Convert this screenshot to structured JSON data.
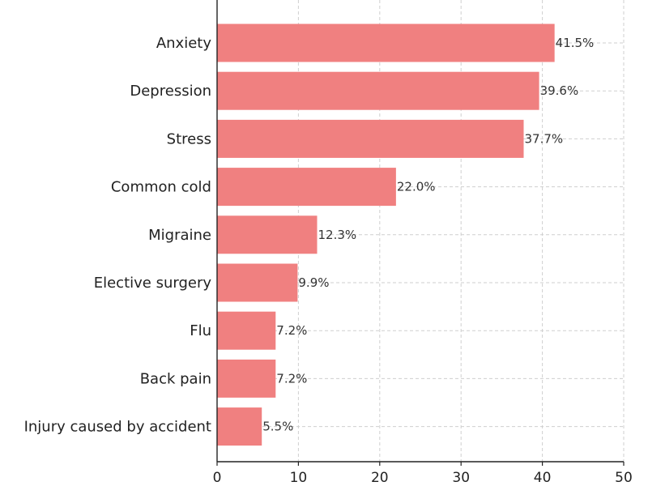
{
  "chart_data": {
    "type": "bar",
    "orientation": "horizontal",
    "title": "",
    "xlabel": "",
    "ylabel": "",
    "categories": [
      "Anxiety",
      "Depression",
      "Stress",
      "Common cold",
      "Migraine",
      "Elective surgery",
      "Flu",
      "Back pain",
      "Injury caused by accident"
    ],
    "values": [
      41.5,
      39.6,
      37.7,
      22.0,
      12.3,
      9.9,
      7.2,
      7.2,
      5.5
    ],
    "value_labels": [
      "41.5%",
      "39.6%",
      "37.7%",
      "22.0%",
      "12.3%",
      "9.9%",
      "7.2%",
      "7.2%",
      "5.5%"
    ],
    "xlim": [
      0,
      50
    ],
    "xticks": [
      0,
      10,
      20,
      30,
      40,
      50
    ],
    "grid": true,
    "bar_color": "#f08080"
  }
}
